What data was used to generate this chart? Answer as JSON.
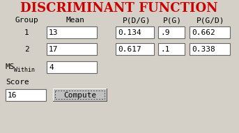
{
  "title": "DISCRIMINANT FUNCTION",
  "title_color": "#CC0000",
  "bg_color": "#D4D0C8",
  "headers": [
    "Group",
    "Mean",
    "P(D/G)",
    "P(G)",
    "P(G/D)"
  ],
  "row1_group": "1",
  "row1_mean": "13",
  "row1_pdg": "0.134",
  "row1_pg": ".9",
  "row1_pgd": "0.662",
  "row2_group": "2",
  "row2_mean": "17",
  "row2_pdg": "0.617",
  "row2_pg": ".1",
  "row2_pgd": "0.338",
  "ms_label": "MS",
  "ms_sub": "Within",
  "ms_val": "4",
  "score_label": "Score",
  "score_val": "16",
  "button_label": "Compute",
  "box_bg": "#FFFFFF",
  "button_bg": "#C0C0C0",
  "text_color": "#000000"
}
